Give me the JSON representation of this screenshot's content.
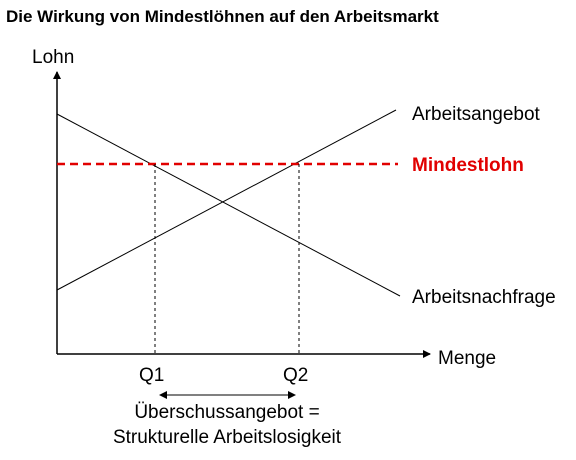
{
  "title": "Die Wirkung von Mindestlöhnen auf den Arbeitsmarkt",
  "y_axis_label": "Lohn",
  "x_axis_label": "Menge",
  "supply_label": "Arbeitsangebot",
  "demand_label": "Arbeitsnachfrage",
  "min_wage_label": "Mindestlohn",
  "q1_label": "Q1",
  "q2_label": "Q2",
  "gap_line1": "Überschussangebot =",
  "gap_line2": "Strukturelle Arbeitslosigkeit",
  "colors": {
    "min_wage": "#e10000",
    "lines": "#000000"
  }
}
